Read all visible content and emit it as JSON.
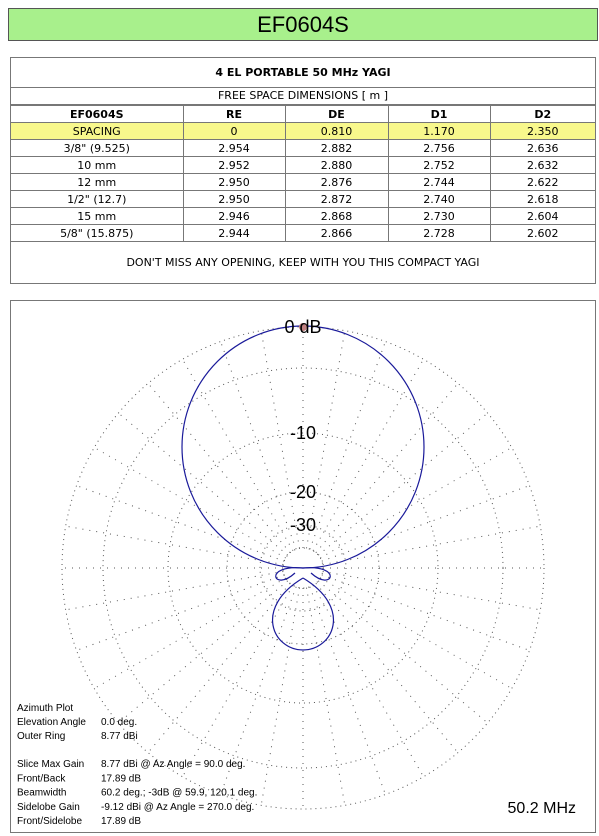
{
  "header": {
    "title": "EF0604S"
  },
  "table": {
    "title": "4 EL PORTABLE 50 MHz YAGI",
    "subtitle": "FREE SPACE DIMENSIONS [ m ]",
    "columns": [
      "EF0604S",
      "RE",
      "DE",
      "D1",
      "D2"
    ],
    "rows": [
      [
        "SPACING",
        "0",
        "0.810",
        "1.170",
        "2.350"
      ],
      [
        "3/8\" (9.525)",
        "2.954",
        "2.882",
        "2.756",
        "2.636"
      ],
      [
        "10 mm",
        "2.952",
        "2.880",
        "2.752",
        "2.632"
      ],
      [
        "12 mm",
        "2.950",
        "2.876",
        "2.744",
        "2.622"
      ],
      [
        "1/2\" (12.7)",
        "2.950",
        "2.872",
        "2.740",
        "2.618"
      ],
      [
        "15 mm",
        "2.946",
        "2.868",
        "2.730",
        "2.604"
      ],
      [
        "5/8\" (15.875)",
        "2.944",
        "2.866",
        "2.728",
        "2.602"
      ]
    ],
    "footer": "DON'T MISS ANY OPENING, KEEP WITH YOU THIS COMPACT YAGI"
  },
  "plot": {
    "ring_labels": [
      "0 dB",
      "-10",
      "-20",
      "-30"
    ],
    "info_title": "Azimuth Plot",
    "info_top": [
      {
        "label": "Elevation Angle",
        "value": "0.0 deg."
      },
      {
        "label": "Outer Ring",
        "value": "8.77 dBi"
      }
    ],
    "info_bottom": [
      {
        "label": "Slice Max Gain",
        "value": "8.77 dBi @ Az Angle = 90.0 deg."
      },
      {
        "label": "Front/Back",
        "value": "17.89 dB"
      },
      {
        "label": "Beamwidth",
        "value": "60.2 deg.; -3dB @ 59.9, 120.1 deg."
      },
      {
        "label": "Sidelobe Gain",
        "value": "-9.12 dBi @ Az Angle = 270.0 deg."
      },
      {
        "label": "Front/Sidelobe",
        "value": "17.89 dB"
      }
    ],
    "frequency": "50.2 MHz"
  }
}
